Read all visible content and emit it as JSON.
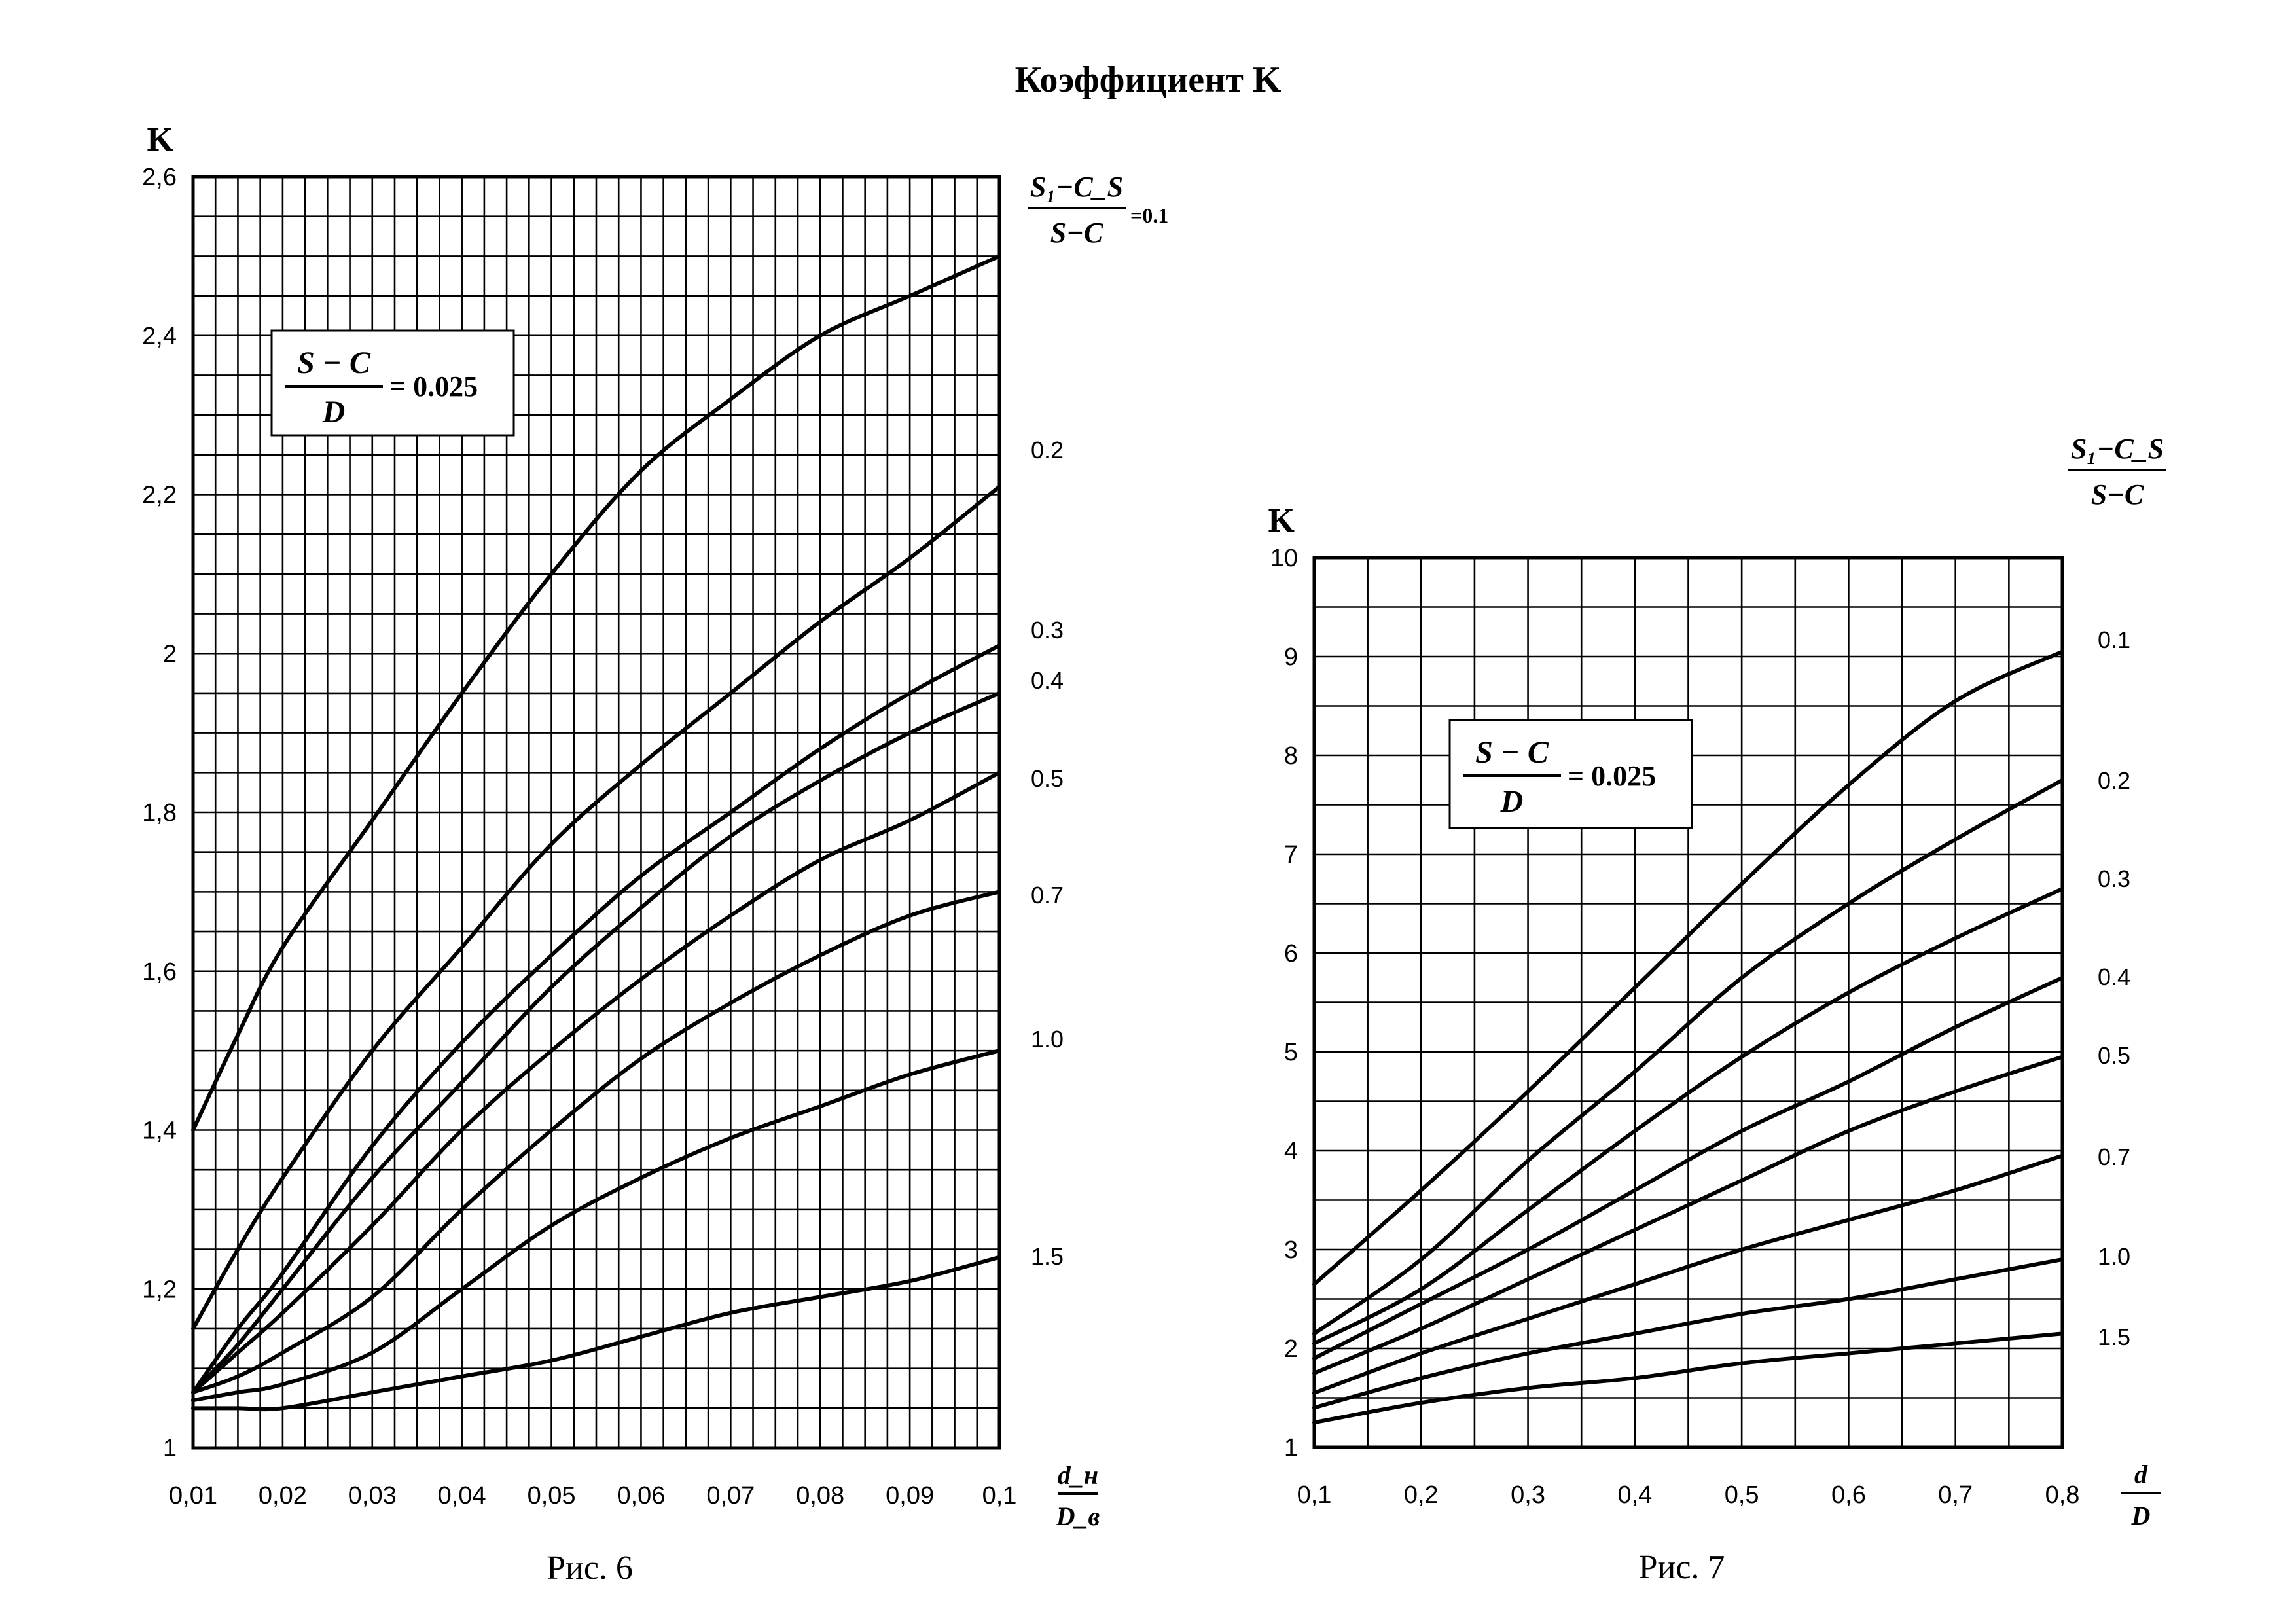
{
  "page_title": "Коэффициент K",
  "chart_data": [
    {
      "id": "fig6",
      "type": "line",
      "caption": "Рис. 6",
      "ylabel": "K",
      "xlabel_num": "d_н",
      "xlabel_den": "D_в",
      "box": {
        "num": "S − C",
        "den": "D",
        "value": "= 0.025"
      },
      "legend_header": {
        "num": "S₁−C_S",
        "den": "S−C",
        "suffix": "=0.1"
      },
      "xlim": [
        0.01,
        0.1
      ],
      "ylim": [
        1.0,
        2.6
      ],
      "x_ticks": [
        "0,01",
        "0,02",
        "0,03",
        "0,04",
        "0,05",
        "0,06",
        "0,07",
        "0,08",
        "0,09",
        "0,1"
      ],
      "y_ticks": [
        "1",
        "1,2",
        "1,4",
        "1,6",
        "1,8",
        "2",
        "2,2",
        "2,4",
        "2,6"
      ],
      "grid": true,
      "series": [
        {
          "name": "0.1",
          "x": [
            0.01,
            0.015,
            0.02,
            0.03,
            0.04,
            0.05,
            0.06,
            0.07,
            0.08,
            0.09,
            0.1
          ],
          "y": [
            1.4,
            1.52,
            1.63,
            1.79,
            1.95,
            2.1,
            2.23,
            2.32,
            2.4,
            2.45,
            2.5
          ]
        },
        {
          "name": "0.2",
          "x": [
            0.01,
            0.015,
            0.02,
            0.03,
            0.04,
            0.05,
            0.06,
            0.07,
            0.08,
            0.09,
            0.1
          ],
          "y": [
            1.15,
            1.25,
            1.34,
            1.5,
            1.63,
            1.76,
            1.86,
            1.95,
            2.04,
            2.12,
            2.21
          ]
        },
        {
          "name": "0.3",
          "x": [
            0.01,
            0.015,
            0.02,
            0.03,
            0.04,
            0.05,
            0.06,
            0.07,
            0.08,
            0.09,
            0.1
          ],
          "y": [
            1.07,
            1.15,
            1.22,
            1.38,
            1.51,
            1.62,
            1.72,
            1.8,
            1.88,
            1.95,
            2.01
          ]
        },
        {
          "name": "0.4",
          "x": [
            0.01,
            0.015,
            0.02,
            0.03,
            0.04,
            0.05,
            0.06,
            0.07,
            0.08,
            0.09,
            0.1
          ],
          "y": [
            1.07,
            1.13,
            1.2,
            1.34,
            1.46,
            1.58,
            1.68,
            1.77,
            1.84,
            1.9,
            1.95
          ]
        },
        {
          "name": "0.5",
          "x": [
            0.01,
            0.015,
            0.02,
            0.03,
            0.04,
            0.05,
            0.06,
            0.07,
            0.08,
            0.09,
            0.1
          ],
          "y": [
            1.07,
            1.12,
            1.17,
            1.28,
            1.4,
            1.5,
            1.59,
            1.67,
            1.74,
            1.79,
            1.85
          ]
        },
        {
          "name": "0.7",
          "x": [
            0.01,
            0.015,
            0.02,
            0.03,
            0.04,
            0.05,
            0.06,
            0.07,
            0.08,
            0.09,
            0.1
          ],
          "y": [
            1.07,
            1.09,
            1.12,
            1.19,
            1.3,
            1.4,
            1.49,
            1.56,
            1.62,
            1.67,
            1.7
          ]
        },
        {
          "name": "1.0",
          "x": [
            0.01,
            0.015,
            0.02,
            0.03,
            0.04,
            0.05,
            0.06,
            0.07,
            0.08,
            0.09,
            0.1
          ],
          "y": [
            1.06,
            1.07,
            1.08,
            1.12,
            1.2,
            1.28,
            1.34,
            1.39,
            1.43,
            1.47,
            1.5
          ]
        },
        {
          "name": "1.5",
          "x": [
            0.01,
            0.015,
            0.02,
            0.03,
            0.04,
            0.05,
            0.06,
            0.07,
            0.08,
            0.09,
            0.1
          ],
          "y": [
            1.05,
            1.05,
            1.05,
            1.07,
            1.09,
            1.11,
            1.14,
            1.17,
            1.19,
            1.21,
            1.24
          ]
        }
      ]
    },
    {
      "id": "fig7",
      "type": "line",
      "caption": "Рис. 7",
      "ylabel": "K",
      "xlabel_num": "d",
      "xlabel_den": "D",
      "box": {
        "num": "S − C",
        "den": "D",
        "value": "= 0.025"
      },
      "legend_header": {
        "num": "S₁−C_S",
        "den": "S−C",
        "suffix": ""
      },
      "xlim": [
        0.1,
        0.8
      ],
      "ylim": [
        1,
        10
      ],
      "x_ticks": [
        "0,1",
        "0,2",
        "0,3",
        "0,4",
        "0,5",
        "0,6",
        "0,7",
        "0,8"
      ],
      "y_ticks": [
        "1",
        "2",
        "3",
        "4",
        "5",
        "6",
        "7",
        "8",
        "9",
        "10"
      ],
      "grid": true,
      "series": [
        {
          "name": "0.1",
          "x": [
            0.1,
            0.2,
            0.3,
            0.4,
            0.5,
            0.6,
            0.7,
            0.8
          ],
          "y": [
            2.65,
            3.6,
            4.6,
            5.65,
            6.7,
            7.7,
            8.55,
            9.05
          ]
        },
        {
          "name": "0.2",
          "x": [
            0.1,
            0.2,
            0.3,
            0.4,
            0.5,
            0.6,
            0.7,
            0.8
          ],
          "y": [
            2.15,
            2.9,
            3.9,
            4.8,
            5.75,
            6.5,
            7.15,
            7.75
          ]
        },
        {
          "name": "0.3",
          "x": [
            0.1,
            0.2,
            0.3,
            0.4,
            0.5,
            0.6,
            0.7,
            0.8
          ],
          "y": [
            2.05,
            2.6,
            3.4,
            4.2,
            4.95,
            5.6,
            6.15,
            6.65
          ]
        },
        {
          "name": "0.4",
          "x": [
            0.1,
            0.2,
            0.3,
            0.4,
            0.5,
            0.6,
            0.7,
            0.8
          ],
          "y": [
            1.9,
            2.45,
            3.0,
            3.6,
            4.2,
            4.7,
            5.25,
            5.75
          ]
        },
        {
          "name": "0.5",
          "x": [
            0.1,
            0.2,
            0.3,
            0.4,
            0.5,
            0.6,
            0.7,
            0.8
          ],
          "y": [
            1.75,
            2.2,
            2.7,
            3.2,
            3.7,
            4.2,
            4.6,
            4.95
          ]
        },
        {
          "name": "0.7",
          "x": [
            0.1,
            0.2,
            0.3,
            0.4,
            0.5,
            0.6,
            0.7,
            0.8
          ],
          "y": [
            1.55,
            1.95,
            2.3,
            2.65,
            3.0,
            3.3,
            3.6,
            3.95
          ]
        },
        {
          "name": "1.0",
          "x": [
            0.1,
            0.2,
            0.3,
            0.4,
            0.5,
            0.6,
            0.7,
            0.8
          ],
          "y": [
            1.4,
            1.7,
            1.95,
            2.15,
            2.35,
            2.5,
            2.7,
            2.9
          ]
        },
        {
          "name": "1.5",
          "x": [
            0.1,
            0.2,
            0.3,
            0.4,
            0.5,
            0.6,
            0.7,
            0.8
          ],
          "y": [
            1.25,
            1.45,
            1.6,
            1.7,
            1.85,
            1.95,
            2.05,
            2.15
          ]
        }
      ]
    }
  ]
}
